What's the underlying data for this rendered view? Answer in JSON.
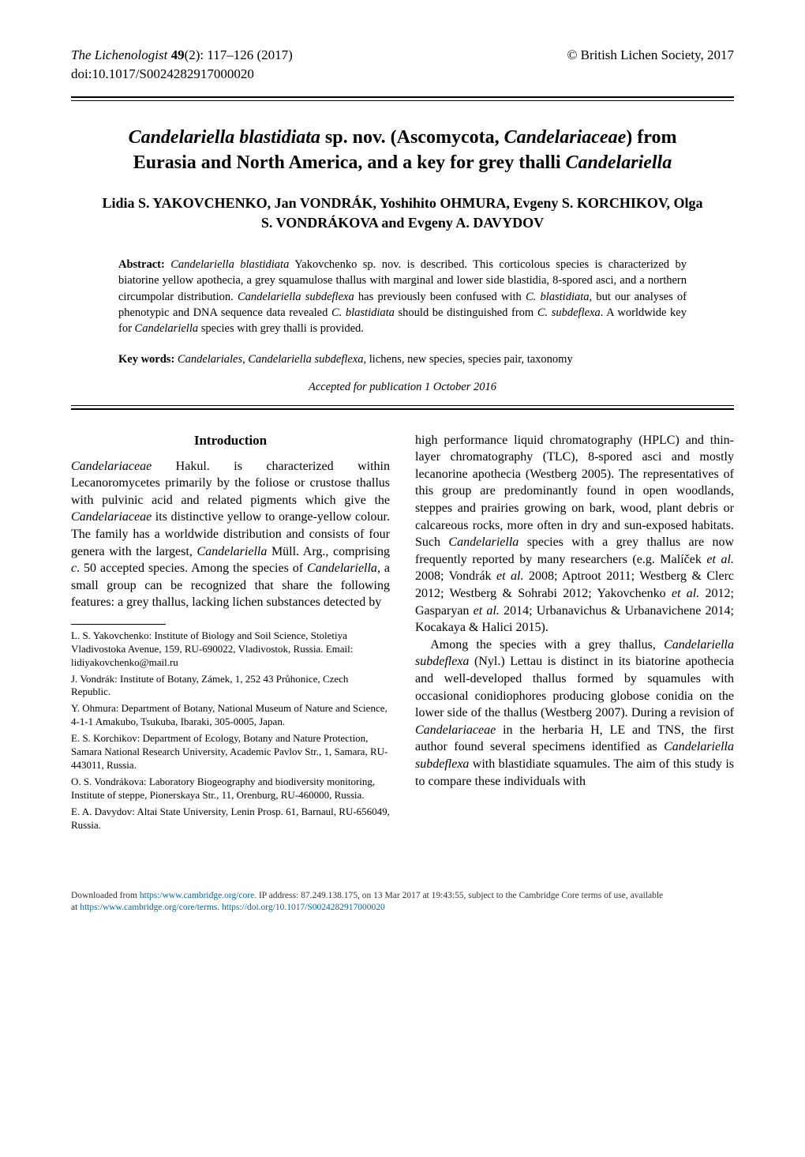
{
  "header": {
    "journal": "The Lichenologist",
    "volume": "49",
    "issue_pages": "(2): 117–126 (2017)",
    "copyright": "© British Lichen Society, 2017",
    "doi": "doi:10.1017/S0024282917000020"
  },
  "title_html": "<span class=\"genus\">Candelariella blastidiata</span> sp. nov. (Ascomycota, <span class=\"genus\">Candelariaceae</span>) from Eurasia and North America, and a key for grey thalli <span class=\"genus\">Candelariella</span>",
  "authors": "Lidia S. YAKOVCHENKO, Jan VONDRÁK, Yoshihito OHMURA, Evgeny S. KORCHIKOV, Olga S. VONDRÁKOVA and Evgeny A. DAVYDOV",
  "abstract_label": "Abstract:",
  "abstract_html": " <i>Candelariella blastidiata</i> Yakovchenko sp. nov. is described. This corticolous species is characterized by biatorine yellow apothecia, a grey squamulose thallus with marginal and lower side blastidia, 8-spored asci, and a northern circumpolar distribution. <i>Candelariella subdeflexa</i> has previously been confused with <i>C. blastidiata</i>, but our analyses of phenotypic and DNA sequence data revealed <i>C. blastidiata</i> should be distinguished from <i>C. subdeflexa</i>. A worldwide key for <i>Candelariella</i> species with grey thalli is provided.",
  "keywords_label": "Key words:",
  "keywords_html": " <i>Candelariales</i>, <i>Candelariella subdeflexa</i>, lichens, new species, species pair, taxonomy",
  "accepted": "Accepted for publication 1 October 2016",
  "intro_head": "Introduction",
  "col_left": {
    "p1_html": "<i>Candelariaceae</i> Hakul. is characterized within Lecanoromycetes primarily by the foliose or crustose thallus with pulvinic acid and related pigments which give the <i>Candelariaceae</i> its distinctive yellow to orange-yellow colour. The family has a worldwide distribution and consists of four genera with the largest, <i>Candelariella</i> Müll. Arg., comprising <i>c</i>. 50 accepted species. Among the species of <i>Candelariella</i>, a small group can be recognized that share the following features: a grey thallus, lacking lichen substances detected by"
  },
  "col_right": {
    "p1_html": "high performance liquid chromatography (HPLC) and thin-layer chromatography (TLC), 8-spored asci and mostly lecanorine apothecia (Westberg 2005). The representatives of this group are predominantly found in open woodlands, steppes and prairies growing on bark, wood, plant debris or calcareous rocks, more often in dry and sun-exposed habitats. Such <i>Candelariella</i> species with a grey thallus are now frequently reported by many researchers (e.g. Malíček <i>et al.</i> 2008; Vondrák <i>et al.</i> 2008; Aptroot 2011; Westberg & Clerc 2012; Westberg & Sohrabi 2012; Yakovchenko <i>et al.</i> 2012; Gasparyan <i>et al.</i> 2014; Urbanavichus & Urbanavichene 2014; Kocakaya & Halici 2015).",
    "p2_html": "Among the species with a grey thallus, <i>Candelariella subdeflexa</i> (Nyl.) Lettau is distinct in its biatorine apothecia and well-developed thallus formed by squamules with occasional conidiophores producing globose conidia on the lower side of the thallus (Westberg 2007). During a revision of <i>Candelariaceae</i> in the herbaria H, LE and TNS, the first author found several specimens identified as <i>Candelariella subdeflexa</i> with blastidiate squamules. The aim of this study is to compare these individuals with"
  },
  "affiliations": [
    "L. S. Yakovchenko: Institute of Biology and Soil Science, Stoletiya Vladivostoka Avenue, 159, RU-690022, Vladivostok, Russia. Email: lidiyakovchenko@mail.ru",
    "J. Vondrák: Institute of Botany, Zámek, 1, 252 43 Průhonice, Czech Republic.",
    "Y. Ohmura: Department of Botany, National Museum of Nature and Science, 4-1-1 Amakubo, Tsukuba, Ibaraki, 305-0005, Japan.",
    "E. S. Korchikov: Department of Ecology, Botany and Nature Protection, Samara National Research University, Academic Pavlov Str., 1, Samara, RU-443011, Russia.",
    "O. S. Vondrákova: Laboratory Biogeography and biodiversity monitoring, Institute of steppe, Pionerskaya Str., 11, Orenburg, RU-460000, Russia.",
    "E. A. Davydov: Altai State University, Lenin Prosp. 61, Barnaul, RU-656049, Russia."
  ],
  "footer": {
    "line1_pre": "Downloaded from ",
    "line1_link1": "https:/www.cambridge.org/core",
    "line1_mid": ". IP address: 87.249.138.175, on 13 Mar 2017 at 19:43:55, subject to the Cambridge Core terms of use, available",
    "line2_pre": "at ",
    "line2_link1": "https:/www.cambridge.org/core/terms",
    "line2_mid": ". ",
    "line2_link2": "https://doi.org/10.1017/S0024282917000020"
  }
}
